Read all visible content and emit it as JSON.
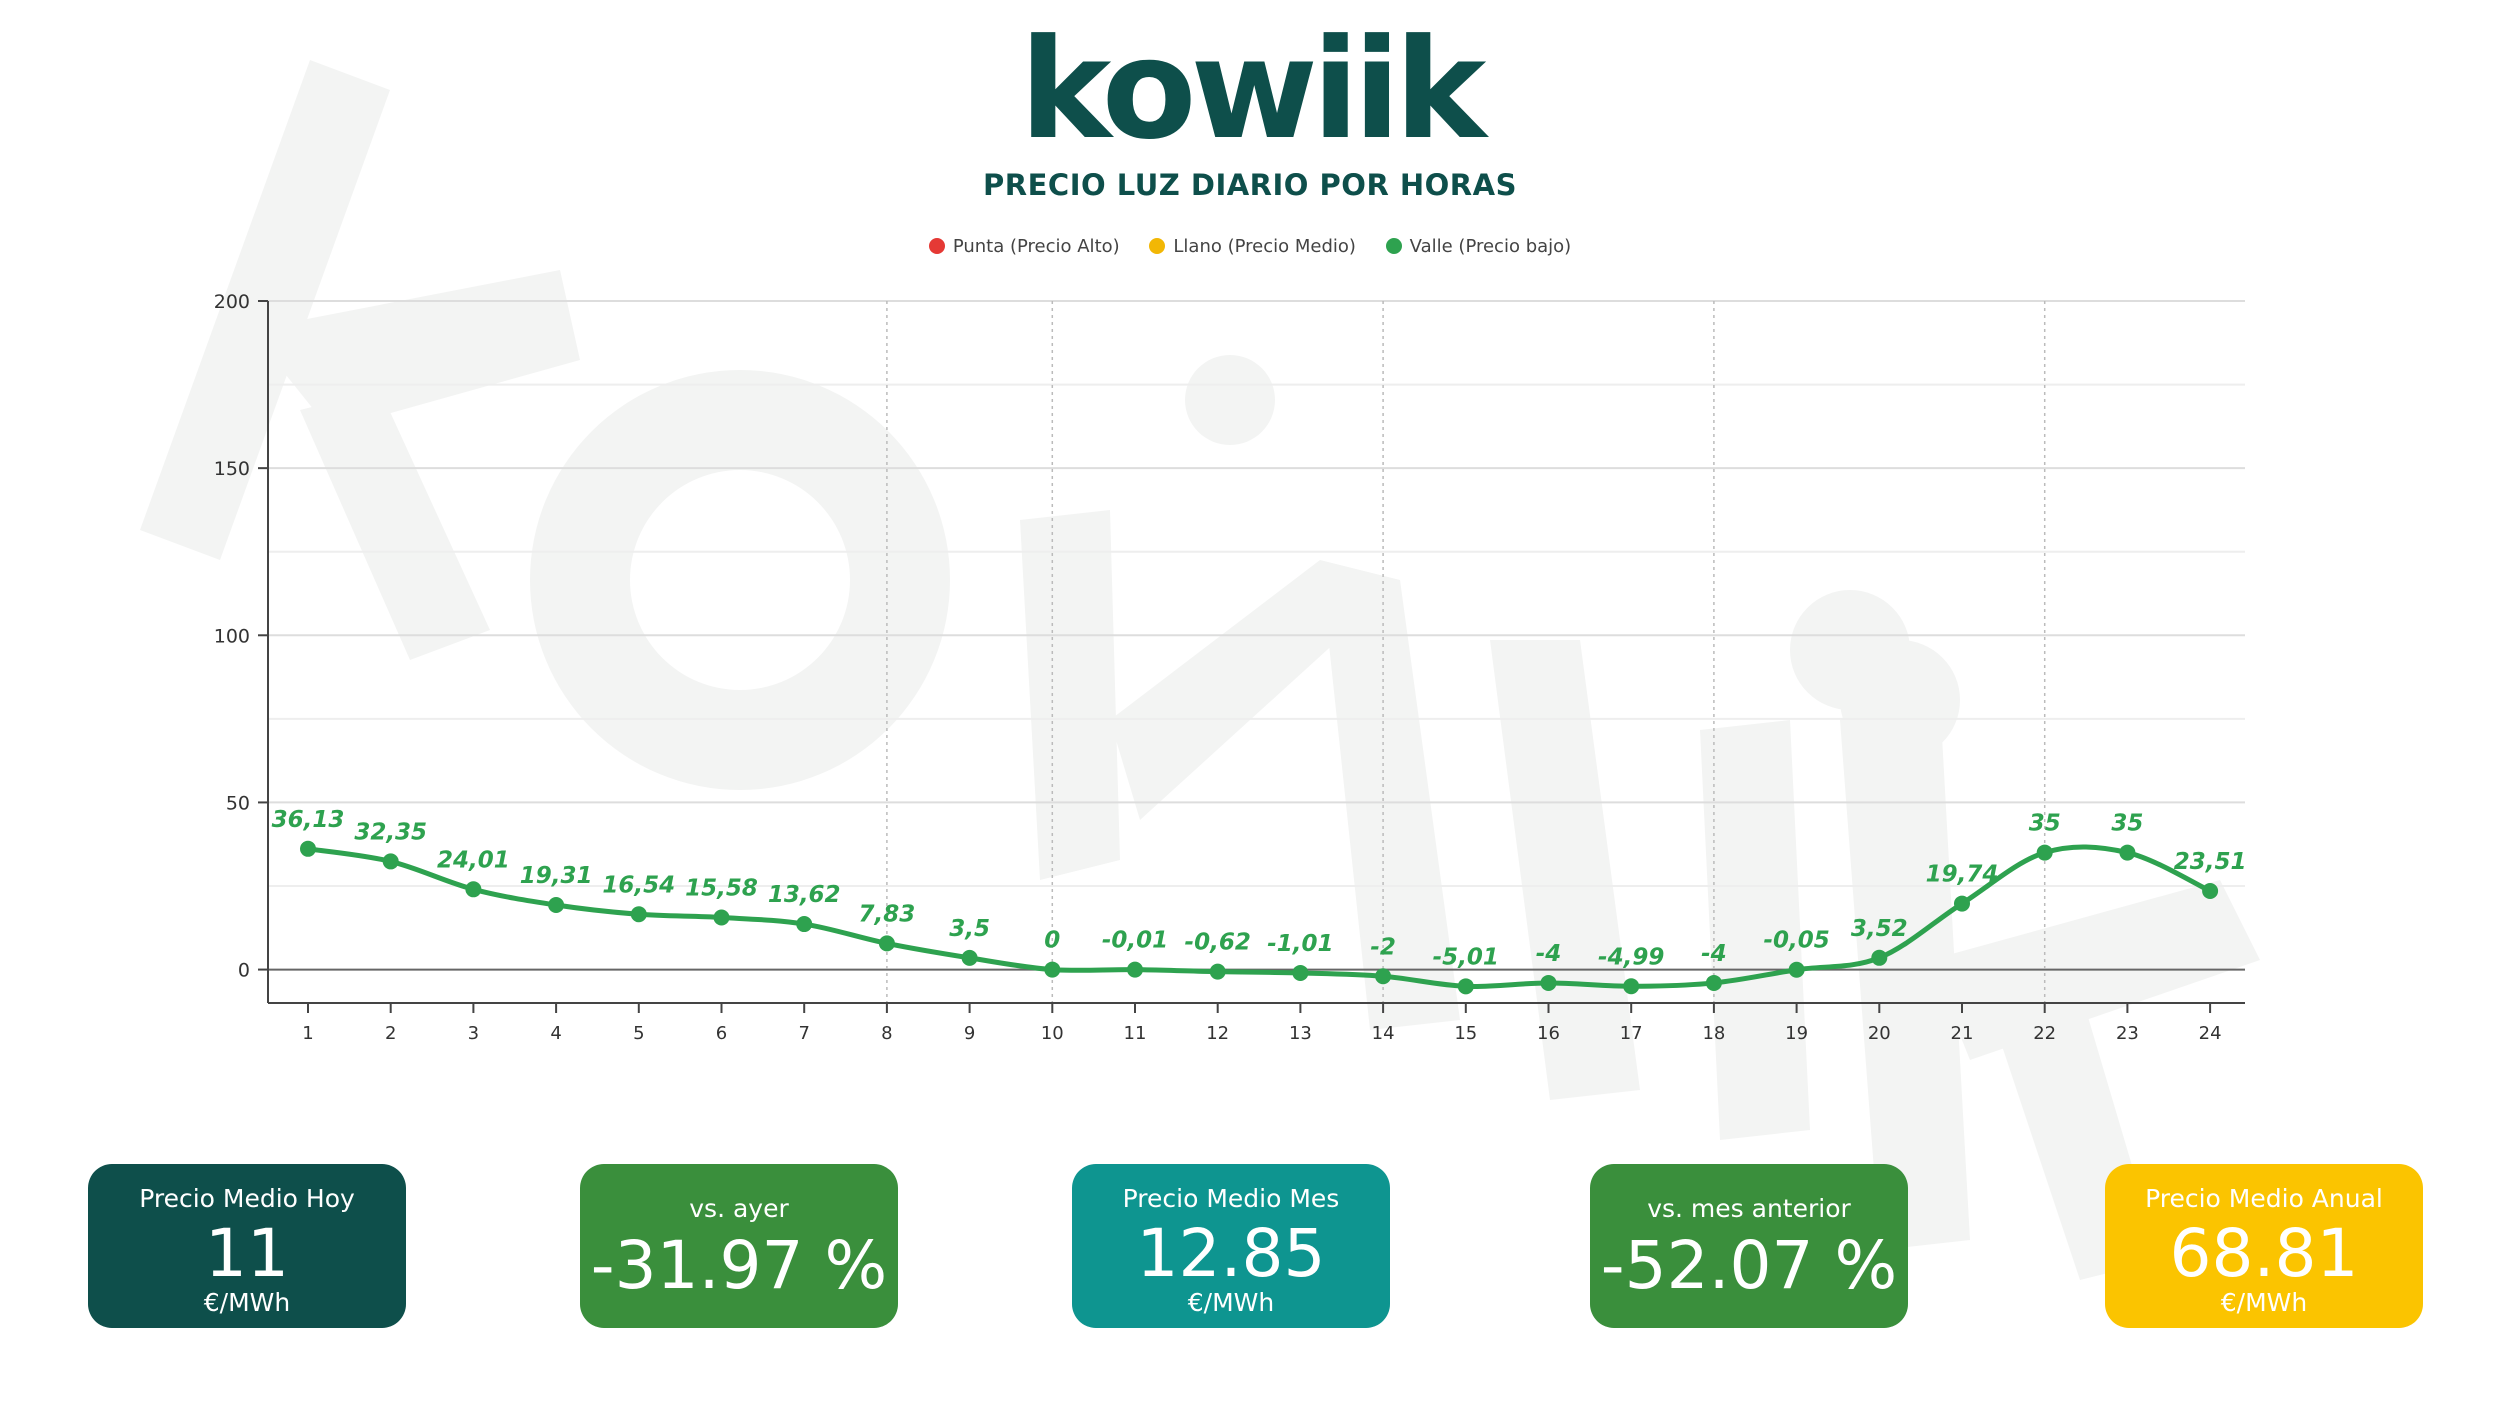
{
  "brand": {
    "logo_text": "kowiik",
    "primary_color": "#0e4f4b"
  },
  "header": {
    "subtitle": "PRECIO LUZ DIARIO POR HORAS"
  },
  "legend": [
    {
      "label": "Punta (Precio Alto)",
      "color": "#e53935"
    },
    {
      "label": "Llano (Precio Medio)",
      "color": "#f2b705"
    },
    {
      "label": "Valle (Precio bajo)",
      "color": "#2ea24f"
    }
  ],
  "chart_data": {
    "type": "line",
    "title": "",
    "xlabel": "",
    "ylabel": "",
    "x": [
      1,
      2,
      3,
      4,
      5,
      6,
      7,
      8,
      9,
      10,
      11,
      12,
      13,
      14,
      15,
      16,
      17,
      18,
      19,
      20,
      21,
      22,
      23,
      24
    ],
    "series": [
      {
        "name": "Valle (Precio bajo)",
        "color": "#2ea24f",
        "values": [
          36.13,
          32.35,
          24.01,
          19.31,
          16.54,
          15.58,
          13.62,
          7.83,
          3.5,
          0,
          -0.01,
          -0.62,
          -1.01,
          -2,
          -5.01,
          -4,
          -4.99,
          -4,
          -0.05,
          3.52,
          19.74,
          35,
          35,
          23.51
        ],
        "labels": [
          "36,13",
          "32,35",
          "24,01",
          "19,31",
          "16,54",
          "15,58",
          "13,62",
          "7,83",
          "3,5",
          "0",
          "-0,01",
          "-0,62",
          "-1,01",
          "-2",
          "-5,01",
          "-4",
          "-4,99",
          "-4",
          "-0,05",
          "3,52",
          "19,74",
          "35",
          "35",
          "23,51"
        ]
      }
    ],
    "ylim": [
      -10,
      200
    ],
    "yticks": [
      0,
      50,
      100,
      150,
      200
    ],
    "grid": true,
    "legend_position": "top-center"
  },
  "stats": [
    {
      "id": "precio-medio-hoy",
      "label": "Precio Medio Hoy",
      "value": "11",
      "unit": "€/MWh",
      "color": "#0e4f4b"
    },
    {
      "id": "vs-ayer",
      "label": "vs. ayer",
      "value": "-31.97 %",
      "unit": "",
      "color": "#3a8f3c"
    },
    {
      "id": "precio-medio-mes",
      "label": "Precio Medio Mes",
      "value": "12.85",
      "unit": "€/MWh",
      "color": "#0e9590"
    },
    {
      "id": "vs-mes-anterior",
      "label": "vs. mes anterior",
      "value": "-52.07 %",
      "unit": "",
      "color": "#3a8f3c"
    },
    {
      "id": "precio-medio-anual",
      "label": "Precio Medio Anual",
      "value": "68.81",
      "unit": "€/MWh",
      "color": "#fbc400"
    }
  ]
}
